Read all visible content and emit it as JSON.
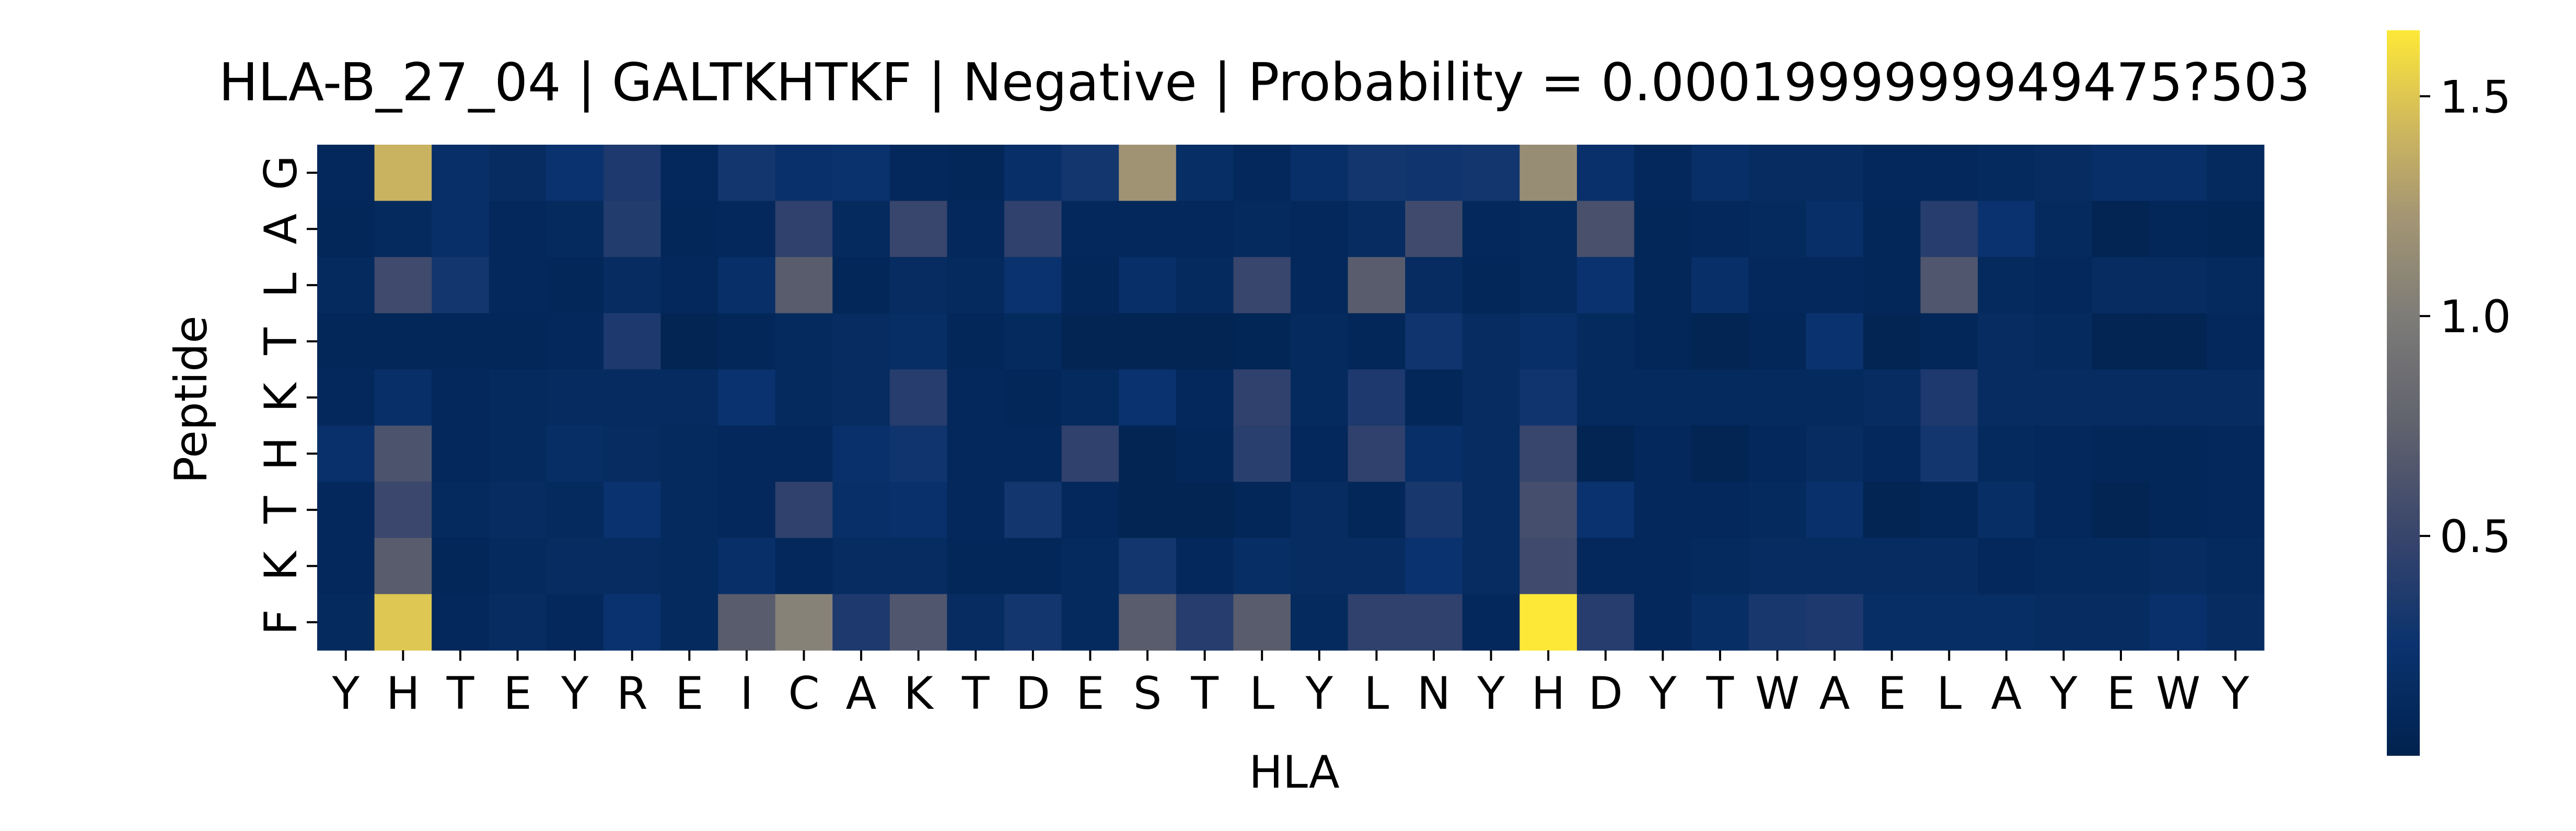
{
  "chart_data": {
    "type": "heatmap",
    "title": "HLA-B_27_04 | GALTKHTKF | Negative | Probability = 0.0001999999949475?503",
    "xlabel": "HLA",
    "ylabel": "Peptide",
    "x_categories": [
      "Y",
      "H",
      "T",
      "E",
      "Y",
      "R",
      "E",
      "I",
      "C",
      "A",
      "K",
      "T",
      "D",
      "E",
      "S",
      "T",
      "L",
      "Y",
      "L",
      "N",
      "Y",
      "H",
      "D",
      "Y",
      "T",
      "W",
      "A",
      "E",
      "L",
      "A",
      "Y",
      "E",
      "W",
      "Y"
    ],
    "y_categories": [
      "G",
      "A",
      "L",
      "T",
      "K",
      "H",
      "T",
      "K",
      "F"
    ],
    "colormap": "cividis",
    "value_range": [
      0.0,
      1.65
    ],
    "colorbar_ticks": [
      0.5,
      1.0,
      1.5
    ],
    "colorbar_tick_labels": [
      "0.5",
      "1.0",
      "1.5"
    ],
    "values": [
      [
        0.1,
        1.4,
        0.2,
        0.15,
        0.25,
        0.35,
        0.1,
        0.3,
        0.22,
        0.24,
        0.1,
        0.08,
        0.2,
        0.3,
        1.2,
        0.18,
        0.1,
        0.2,
        0.3,
        0.28,
        0.3,
        1.15,
        0.22,
        0.1,
        0.2,
        0.15,
        0.15,
        0.1,
        0.1,
        0.12,
        0.15,
        0.2,
        0.2,
        0.12
      ],
      [
        0.08,
        0.12,
        0.2,
        0.1,
        0.12,
        0.38,
        0.08,
        0.1,
        0.45,
        0.12,
        0.5,
        0.1,
        0.45,
        0.1,
        0.1,
        0.1,
        0.12,
        0.1,
        0.15,
        0.55,
        0.1,
        0.12,
        0.6,
        0.08,
        0.1,
        0.12,
        0.2,
        0.08,
        0.4,
        0.25,
        0.12,
        0.05,
        0.08,
        0.06
      ],
      [
        0.12,
        0.55,
        0.3,
        0.1,
        0.08,
        0.15,
        0.1,
        0.2,
        0.7,
        0.08,
        0.15,
        0.12,
        0.25,
        0.08,
        0.2,
        0.12,
        0.5,
        0.1,
        0.7,
        0.15,
        0.08,
        0.12,
        0.25,
        0.08,
        0.2,
        0.1,
        0.1,
        0.08,
        0.65,
        0.12,
        0.1,
        0.15,
        0.15,
        0.12
      ],
      [
        0.08,
        0.08,
        0.08,
        0.08,
        0.1,
        0.35,
        0.05,
        0.08,
        0.12,
        0.15,
        0.18,
        0.08,
        0.12,
        0.05,
        0.05,
        0.05,
        0.06,
        0.12,
        0.08,
        0.28,
        0.15,
        0.2,
        0.12,
        0.08,
        0.05,
        0.08,
        0.25,
        0.05,
        0.08,
        0.15,
        0.12,
        0.04,
        0.04,
        0.1
      ],
      [
        0.1,
        0.2,
        0.1,
        0.12,
        0.14,
        0.14,
        0.14,
        0.25,
        0.12,
        0.15,
        0.4,
        0.1,
        0.08,
        0.12,
        0.25,
        0.1,
        0.45,
        0.12,
        0.35,
        0.08,
        0.15,
        0.28,
        0.12,
        0.12,
        0.12,
        0.12,
        0.12,
        0.15,
        0.35,
        0.15,
        0.15,
        0.15,
        0.15,
        0.15
      ],
      [
        0.22,
        0.62,
        0.1,
        0.12,
        0.18,
        0.15,
        0.12,
        0.1,
        0.1,
        0.22,
        0.28,
        0.1,
        0.1,
        0.45,
        0.05,
        0.08,
        0.42,
        0.1,
        0.45,
        0.2,
        0.15,
        0.5,
        0.05,
        0.1,
        0.04,
        0.1,
        0.15,
        0.1,
        0.3,
        0.12,
        0.1,
        0.08,
        0.08,
        0.1
      ],
      [
        0.1,
        0.52,
        0.12,
        0.15,
        0.12,
        0.25,
        0.12,
        0.1,
        0.45,
        0.2,
        0.22,
        0.1,
        0.3,
        0.1,
        0.04,
        0.05,
        0.08,
        0.15,
        0.08,
        0.32,
        0.15,
        0.58,
        0.25,
        0.1,
        0.1,
        0.12,
        0.22,
        0.05,
        0.08,
        0.18,
        0.1,
        0.05,
        0.08,
        0.1
      ],
      [
        0.1,
        0.7,
        0.08,
        0.12,
        0.15,
        0.15,
        0.12,
        0.2,
        0.1,
        0.15,
        0.15,
        0.08,
        0.08,
        0.12,
        0.3,
        0.1,
        0.18,
        0.15,
        0.15,
        0.25,
        0.15,
        0.55,
        0.1,
        0.1,
        0.12,
        0.15,
        0.15,
        0.15,
        0.15,
        0.1,
        0.12,
        0.12,
        0.15,
        0.12
      ],
      [
        0.12,
        1.5,
        0.1,
        0.15,
        0.1,
        0.25,
        0.12,
        0.7,
        1.05,
        0.35,
        0.65,
        0.15,
        0.3,
        0.12,
        0.7,
        0.4,
        0.7,
        0.12,
        0.45,
        0.45,
        0.1,
        1.7,
        0.4,
        0.1,
        0.18,
        0.32,
        0.35,
        0.18,
        0.18,
        0.18,
        0.15,
        0.15,
        0.22,
        0.15
      ]
    ]
  }
}
